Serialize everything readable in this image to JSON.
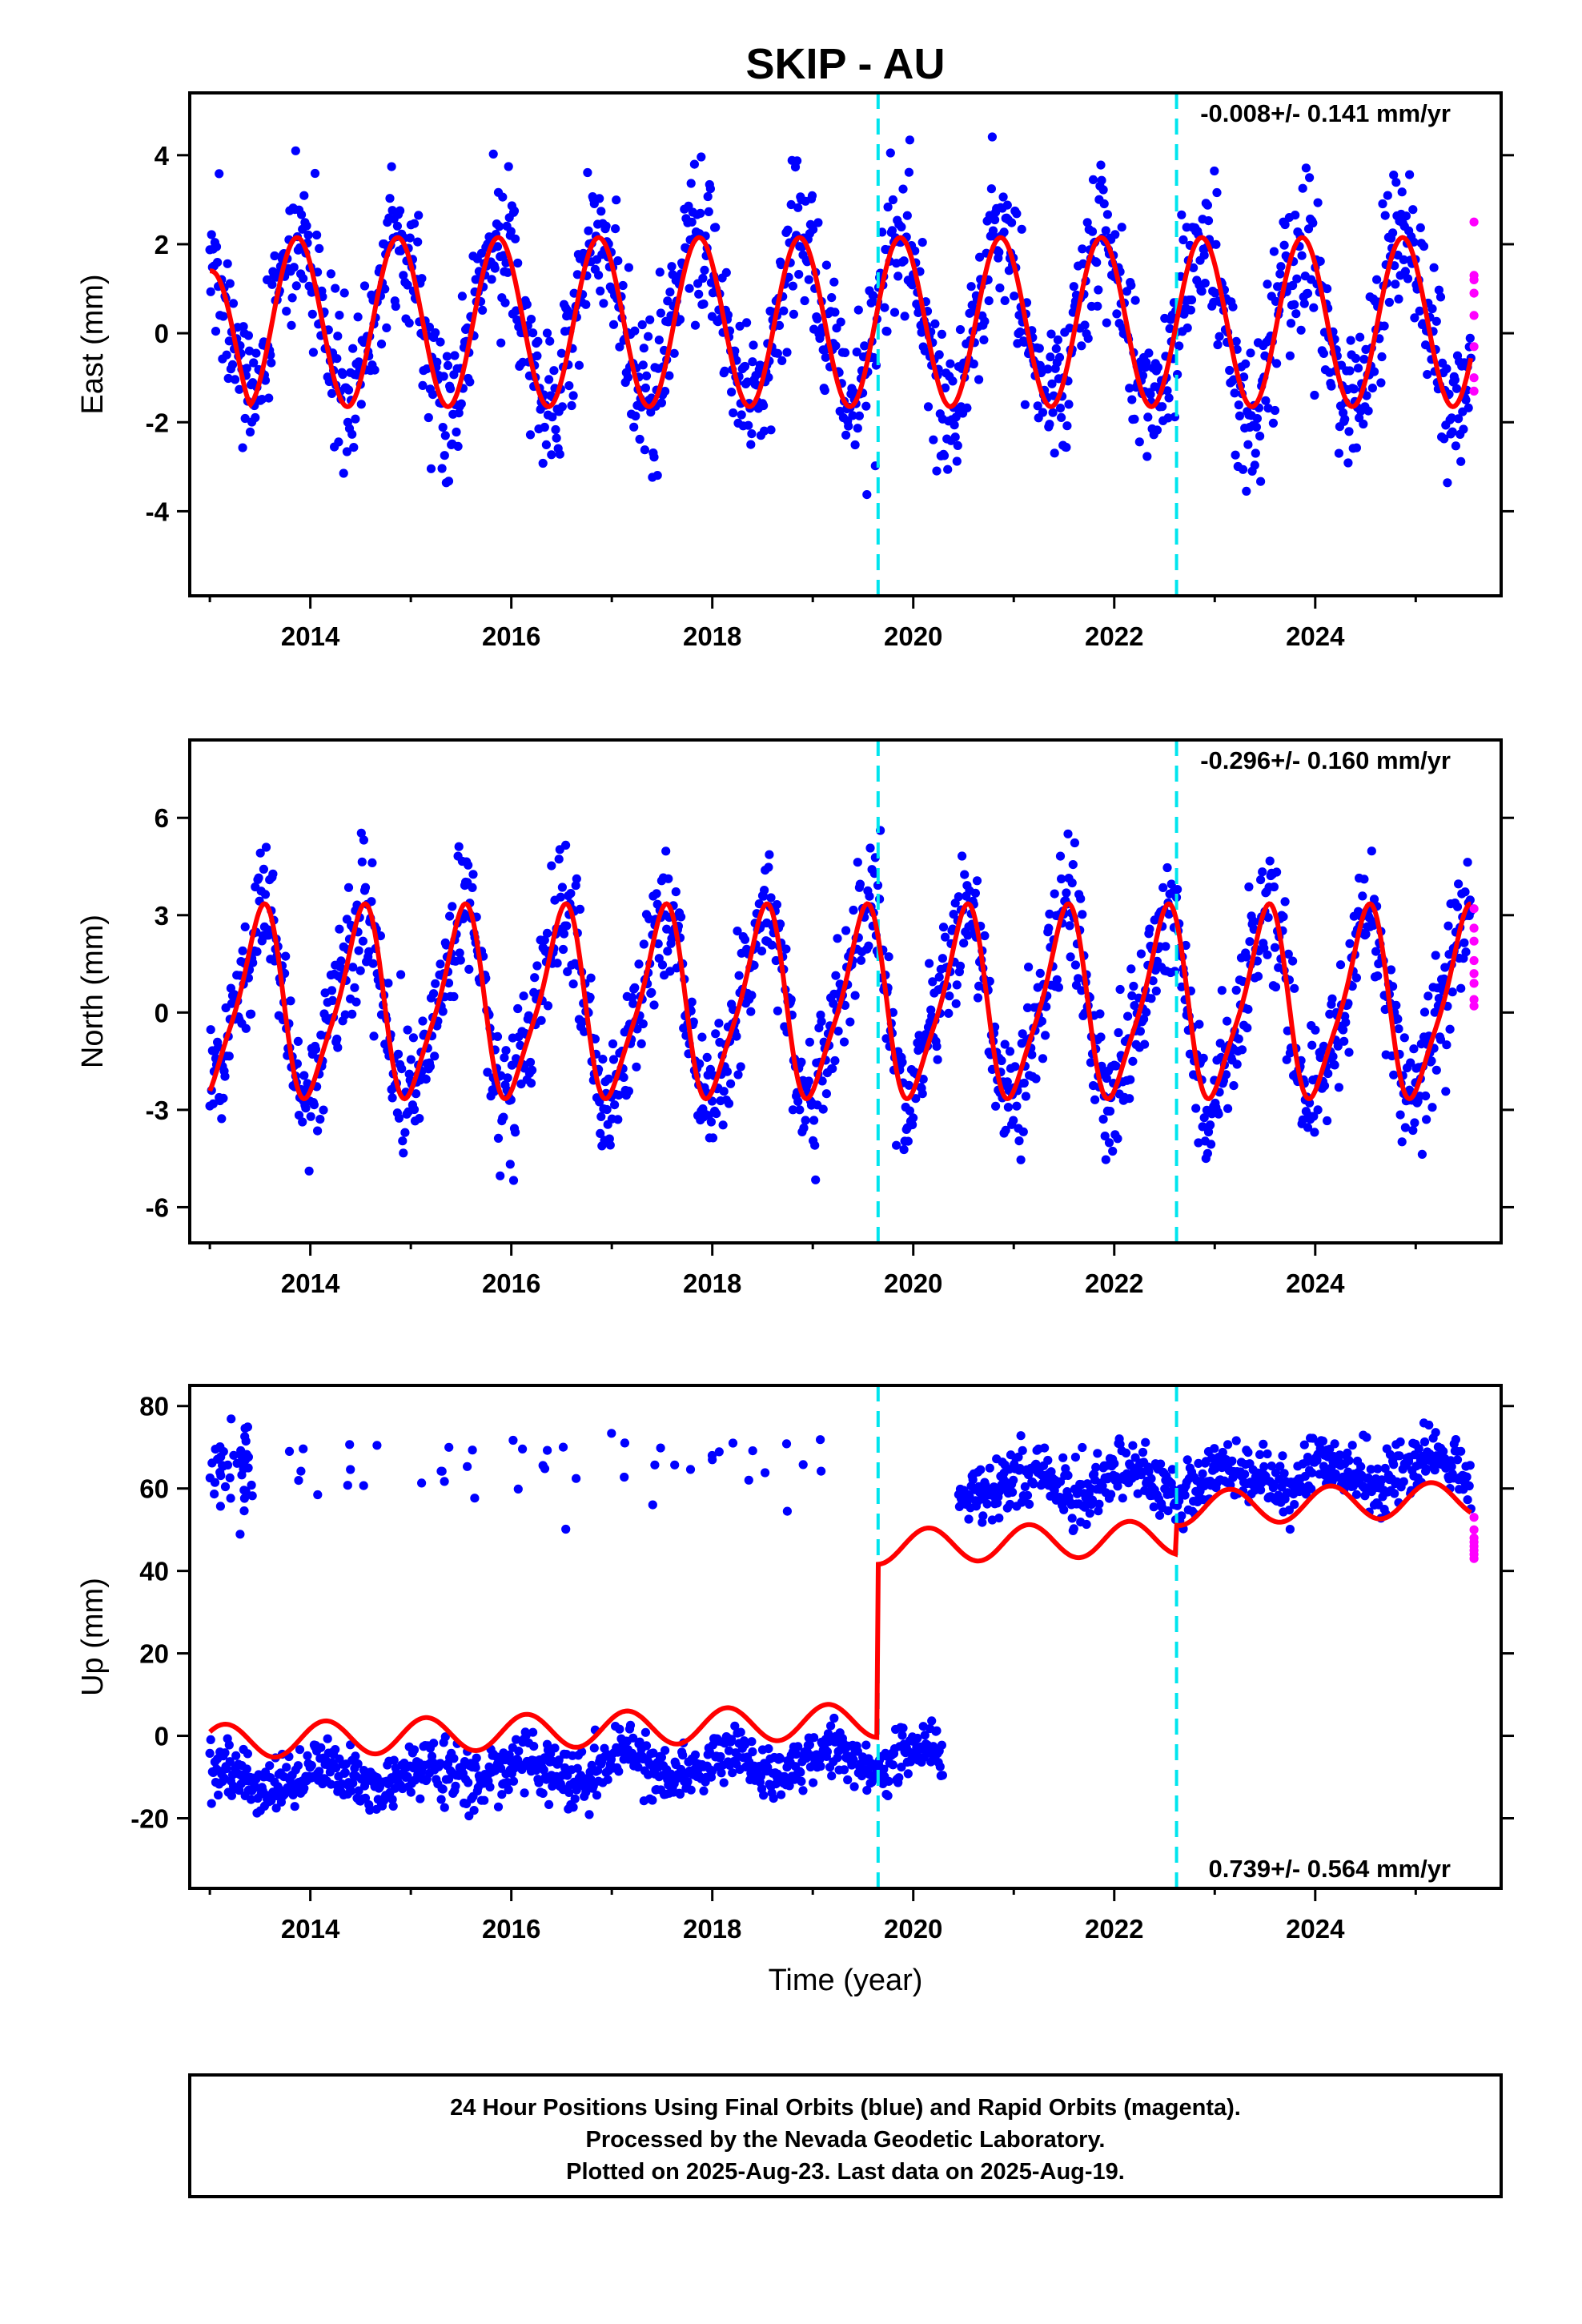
{
  "title": "SKIP - AU",
  "colors": {
    "final_orbits": "#0000ff",
    "rapid_orbits": "#ff00ff",
    "model": "#ff0000",
    "equipment_change": "#00e5ee"
  },
  "x_axis": {
    "label": "Time (year)",
    "range": [
      2012.8,
      2025.85
    ],
    "ticks": [
      2014,
      2016,
      2018,
      2020,
      2022,
      2024
    ],
    "tick_labels": [
      "2014",
      "2016",
      "2018",
      "2020",
      "2022",
      "2024"
    ]
  },
  "chart_data": [
    {
      "type": "scatter",
      "component": "east",
      "ylabel": "East (mm)",
      "ylim": [
        -5.9,
        5.4
      ],
      "y_ticks": [
        -4,
        -2,
        0,
        2,
        4
      ],
      "y_tick_labels": [
        "-4",
        "-2",
        "0",
        "2",
        "4"
      ],
      "rate_text": "-0.008+/- 0.141 mm/yr",
      "rate_position": "top-right",
      "data_span": [
        2013.0,
        2025.55
      ],
      "model": {
        "annual_amplitude": 1.9,
        "annual_peak_phase": 0.87,
        "offset": 0.25,
        "start_value": 1.4
      },
      "scatter_sd": 0.85,
      "equipment_changes": [
        2019.65,
        2022.62
      ],
      "rapid_x": 2025.58,
      "rapid_values": [
        2.5,
        1.3,
        1.2,
        0.9,
        0.4,
        -0.3,
        -1.0,
        -1.3
      ]
    },
    {
      "type": "scatter",
      "component": "north",
      "ylabel": "North (mm)",
      "ylim": [
        -7.1,
        8.4
      ],
      "y_ticks": [
        -6,
        -3,
        0,
        3,
        6
      ],
      "y_tick_labels": [
        "-6",
        "-3",
        "0",
        "3",
        "6"
      ],
      "rate_text": "-0.296+/- 0.160 mm/yr",
      "rate_position": "top-right",
      "data_span": [
        2013.0,
        2025.55
      ],
      "model": {
        "annual_amplitude": 2.8,
        "annual_peak_phase": 0.5,
        "semiannual_amplitude": 0.6,
        "offset": 0.2
      },
      "scatter_sd": 1.0,
      "equipment_changes": [
        2019.65,
        2022.62
      ],
      "rapid_x": 2025.58,
      "rapid_values": [
        3.2,
        2.6,
        2.2,
        1.6,
        1.2,
        0.9,
        0.4,
        0.2
      ]
    },
    {
      "type": "scatter",
      "component": "up",
      "ylabel": "Up (mm)",
      "ylim": [
        -37,
        85
      ],
      "y_ticks": [
        -20,
        0,
        20,
        40,
        60,
        80
      ],
      "y_tick_labels": [
        "-20",
        "0",
        "20",
        "40",
        "60",
        "80"
      ],
      "rate_text": "0.739+/- 0.564 mm/yr",
      "rate_position": "bottom-right",
      "data_span": [
        2013.0,
        2025.55
      ],
      "segments": [
        {
          "from": 2013.0,
          "to": 2020.3,
          "data_level": -11,
          "model_level": -1.5,
          "trend": 0.8
        },
        {
          "from": 2020.3,
          "to": 2025.55,
          "data_level": 60,
          "model_level": 47,
          "trend": 0.9
        }
      ],
      "model": {
        "annual_amplitude": 4.2,
        "annual_peak_phase": 0.15,
        "step_at": 2019.65,
        "step_mm": 42,
        "second_step_at": 2022.62,
        "second_step_mm": 7
      },
      "scatter_sd": 3.5,
      "outlier_cluster": {
        "from": 2013.0,
        "to": 2019.3,
        "center": 66,
        "spread": 5
      },
      "equipment_changes": [
        2019.65,
        2022.62
      ],
      "rapid_x": 2025.58,
      "rapid_values": [
        53,
        50,
        48,
        47,
        46,
        45,
        44,
        43
      ]
    }
  ],
  "footer": {
    "lines": [
      "24 Hour Positions Using Final Orbits (blue) and Rapid Orbits (magenta).",
      "Processed by the Nevada Geodetic Laboratory.",
      "Plotted on 2025-Aug-23. Last data on 2025-Aug-19."
    ]
  }
}
